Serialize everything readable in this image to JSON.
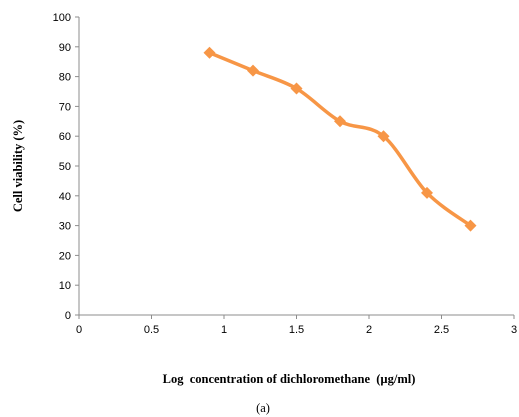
{
  "chart_data": {
    "type": "line",
    "title": "",
    "xlabel": "Log  concentration of dichloromethane  (µg/ml)",
    "ylabel": "Cell viability (%)",
    "xlim": [
      0,
      3
    ],
    "ylim": [
      0,
      100
    ],
    "x_ticks": [
      "0",
      "0.5",
      "1",
      "1.5",
      "2",
      "2.5",
      "3"
    ],
    "y_ticks": [
      "0",
      "10",
      "20",
      "30",
      "40",
      "50",
      "60",
      "70",
      "80",
      "90",
      "100"
    ],
    "grid": false,
    "legend": "none",
    "series": [
      {
        "marker": "diamond",
        "color": "#F79646",
        "smooth": true,
        "x": [
          0.9,
          1.2,
          1.5,
          1.8,
          2.1,
          2.4,
          2.7
        ],
        "y": [
          88,
          82,
          76,
          65,
          60,
          41,
          30
        ]
      }
    ]
  },
  "caption": "(a)"
}
